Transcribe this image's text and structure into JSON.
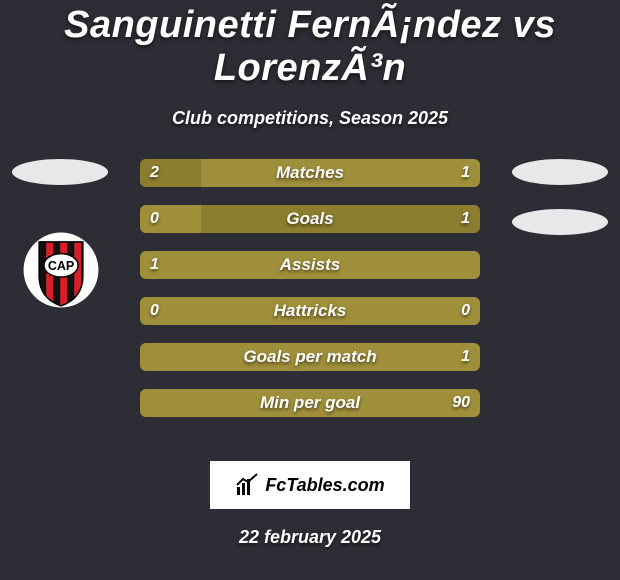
{
  "title": "Sanguinetti FernÃ¡ndez vs LorenzÃ³n",
  "subtitle": "Club competitions, Season 2025",
  "date": "22 february 2025",
  "footer_brand": "FcTables.com",
  "colors": {
    "background": "#2d2d35",
    "bar_base": "#a08f3a",
    "bar_fill": "#8c7d2f",
    "oval": "#e8e8ea",
    "footer_bg": "#ffffff",
    "text": "#ffffff"
  },
  "rows": [
    {
      "label": "Matches",
      "left": "2",
      "right": "1",
      "left_pct": 18,
      "right_pct": 0
    },
    {
      "label": "Goals",
      "left": "0",
      "right": "1",
      "left_pct": 0,
      "right_pct": 82
    },
    {
      "label": "Assists",
      "left": "1",
      "right": "",
      "left_pct": 0,
      "right_pct": 0
    },
    {
      "label": "Hattricks",
      "left": "0",
      "right": "0",
      "left_pct": 0,
      "right_pct": 0
    },
    {
      "label": "Goals per match",
      "left": "",
      "right": "1",
      "left_pct": 0,
      "right_pct": 0
    },
    {
      "label": "Min per goal",
      "left": "",
      "right": "90",
      "left_pct": 0,
      "right_pct": 0
    }
  ],
  "badge": {
    "bg": "#ffffff",
    "stripe_red": "#d81e2a",
    "stripe_black": "#111111",
    "text": "CAP"
  }
}
